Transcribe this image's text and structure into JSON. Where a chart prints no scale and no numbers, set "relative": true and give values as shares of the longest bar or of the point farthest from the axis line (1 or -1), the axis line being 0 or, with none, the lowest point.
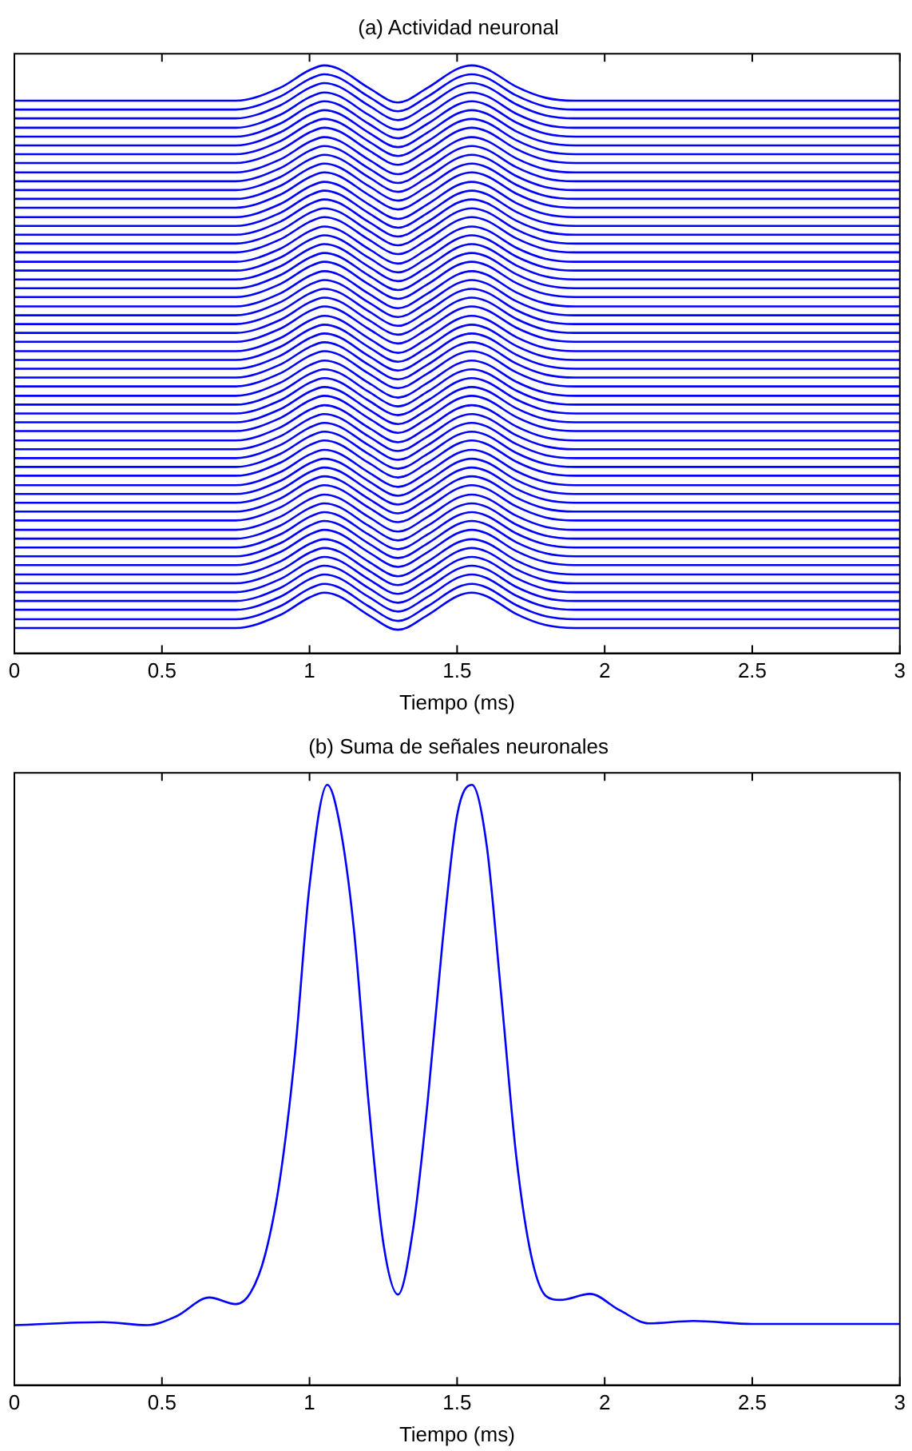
{
  "chart_data": [
    {
      "type": "line",
      "title": "(a) Actividad neuronal",
      "xlabel": "Tiempo (ms)",
      "relative": true,
      "tick_labels": "x",
      "xlim": [
        0,
        3
      ],
      "xticks": [
        0,
        0.5,
        1,
        1.5,
        2,
        2.5,
        3
      ],
      "x": [
        0,
        0.75,
        0.9,
        1.0,
        1.05,
        1.1,
        1.2,
        1.3,
        1.4,
        1.5,
        1.55,
        1.6,
        1.7,
        1.8,
        1.9,
        3
      ],
      "series": [
        {
          "color": "#0000ff",
          "values": [
            0.94,
            0.94,
            0.962,
            0.992,
            1.0,
            0.994,
            0.962,
            0.937,
            0.962,
            0.994,
            1.0,
            0.994,
            0.964,
            0.945,
            0.94,
            0.94
          ]
        },
        {
          "color": "#0000ff",
          "values": [
            0.925,
            0.925,
            0.947,
            0.977,
            0.985,
            0.979,
            0.947,
            0.922,
            0.947,
            0.979,
            0.985,
            0.979,
            0.949,
            0.93,
            0.925,
            0.925
          ]
        },
        {
          "color": "#0000ff",
          "values": [
            0.91,
            0.91,
            0.932,
            0.962,
            0.97,
            0.964,
            0.932,
            0.907,
            0.932,
            0.964,
            0.97,
            0.964,
            0.934,
            0.915,
            0.91,
            0.91
          ]
        },
        {
          "color": "#0000ff",
          "values": [
            0.894,
            0.894,
            0.916,
            0.946,
            0.954,
            0.948,
            0.916,
            0.891,
            0.916,
            0.948,
            0.954,
            0.948,
            0.918,
            0.899,
            0.894,
            0.894
          ]
        },
        {
          "color": "#0000ff",
          "values": [
            0.879,
            0.879,
            0.901,
            0.931,
            0.939,
            0.933,
            0.901,
            0.876,
            0.901,
            0.933,
            0.939,
            0.933,
            0.903,
            0.884,
            0.879,
            0.879
          ]
        },
        {
          "color": "#0000ff",
          "values": [
            0.864,
            0.864,
            0.886,
            0.916,
            0.924,
            0.918,
            0.886,
            0.861,
            0.886,
            0.918,
            0.924,
            0.918,
            0.888,
            0.869,
            0.864,
            0.864
          ]
        },
        {
          "color": "#0000ff",
          "values": [
            0.849,
            0.849,
            0.871,
            0.901,
            0.909,
            0.903,
            0.871,
            0.846,
            0.871,
            0.903,
            0.909,
            0.903,
            0.873,
            0.854,
            0.849,
            0.849
          ]
        },
        {
          "color": "#0000ff",
          "values": [
            0.834,
            0.834,
            0.856,
            0.886,
            0.894,
            0.888,
            0.856,
            0.831,
            0.856,
            0.888,
            0.894,
            0.888,
            0.858,
            0.839,
            0.834,
            0.834
          ]
        },
        {
          "color": "#0000ff",
          "values": [
            0.818,
            0.818,
            0.84,
            0.87,
            0.878,
            0.872,
            0.84,
            0.815,
            0.84,
            0.872,
            0.878,
            0.872,
            0.842,
            0.823,
            0.818,
            0.818
          ]
        },
        {
          "color": "#0000ff",
          "values": [
            0.803,
            0.803,
            0.825,
            0.855,
            0.863,
            0.857,
            0.825,
            0.8,
            0.825,
            0.857,
            0.863,
            0.857,
            0.827,
            0.808,
            0.803,
            0.803
          ]
        },
        {
          "color": "#0000ff",
          "values": [
            0.788,
            0.788,
            0.81,
            0.84,
            0.848,
            0.842,
            0.81,
            0.785,
            0.81,
            0.842,
            0.848,
            0.842,
            0.812,
            0.793,
            0.788,
            0.788
          ]
        },
        {
          "color": "#0000ff",
          "values": [
            0.773,
            0.773,
            0.795,
            0.825,
            0.833,
            0.827,
            0.795,
            0.77,
            0.795,
            0.827,
            0.833,
            0.827,
            0.797,
            0.778,
            0.773,
            0.773
          ]
        },
        {
          "color": "#0000ff",
          "values": [
            0.758,
            0.758,
            0.78,
            0.81,
            0.818,
            0.812,
            0.78,
            0.755,
            0.78,
            0.812,
            0.818,
            0.812,
            0.782,
            0.763,
            0.758,
            0.758
          ]
        },
        {
          "color": "#0000ff",
          "values": [
            0.742,
            0.742,
            0.764,
            0.794,
            0.802,
            0.796,
            0.764,
            0.739,
            0.764,
            0.796,
            0.802,
            0.796,
            0.766,
            0.747,
            0.742,
            0.742
          ]
        },
        {
          "color": "#0000ff",
          "values": [
            0.727,
            0.727,
            0.749,
            0.779,
            0.787,
            0.781,
            0.749,
            0.724,
            0.749,
            0.781,
            0.787,
            0.781,
            0.751,
            0.732,
            0.727,
            0.727
          ]
        },
        {
          "color": "#0000ff",
          "values": [
            0.712,
            0.712,
            0.734,
            0.764,
            0.772,
            0.766,
            0.734,
            0.709,
            0.734,
            0.766,
            0.772,
            0.766,
            0.736,
            0.717,
            0.712,
            0.712
          ]
        },
        {
          "color": "#0000ff",
          "values": [
            0.697,
            0.697,
            0.719,
            0.749,
            0.757,
            0.751,
            0.719,
            0.694,
            0.719,
            0.751,
            0.757,
            0.751,
            0.721,
            0.702,
            0.697,
            0.697
          ]
        },
        {
          "color": "#0000ff",
          "values": [
            0.682,
            0.682,
            0.704,
            0.734,
            0.742,
            0.736,
            0.704,
            0.679,
            0.704,
            0.736,
            0.742,
            0.736,
            0.706,
            0.687,
            0.682,
            0.682
          ]
        },
        {
          "color": "#0000ff",
          "values": [
            0.666,
            0.666,
            0.688,
            0.718,
            0.726,
            0.72,
            0.688,
            0.663,
            0.688,
            0.72,
            0.726,
            0.72,
            0.69,
            0.671,
            0.666,
            0.666
          ]
        },
        {
          "color": "#0000ff",
          "values": [
            0.651,
            0.651,
            0.673,
            0.703,
            0.711,
            0.705,
            0.673,
            0.648,
            0.673,
            0.705,
            0.711,
            0.705,
            0.675,
            0.656,
            0.651,
            0.651
          ]
        },
        {
          "color": "#0000ff",
          "values": [
            0.636,
            0.636,
            0.658,
            0.688,
            0.696,
            0.69,
            0.658,
            0.633,
            0.658,
            0.69,
            0.696,
            0.69,
            0.66,
            0.641,
            0.636,
            0.636
          ]
        },
        {
          "color": "#0000ff",
          "values": [
            0.621,
            0.621,
            0.643,
            0.673,
            0.681,
            0.675,
            0.643,
            0.618,
            0.643,
            0.675,
            0.681,
            0.675,
            0.645,
            0.626,
            0.621,
            0.621
          ]
        },
        {
          "color": "#0000ff",
          "values": [
            0.606,
            0.606,
            0.628,
            0.658,
            0.666,
            0.66,
            0.628,
            0.603,
            0.628,
            0.66,
            0.666,
            0.66,
            0.63,
            0.611,
            0.606,
            0.606
          ]
        },
        {
          "color": "#0000ff",
          "values": [
            0.59,
            0.59,
            0.612,
            0.642,
            0.65,
            0.644,
            0.612,
            0.587,
            0.612,
            0.644,
            0.65,
            0.644,
            0.614,
            0.595,
            0.59,
            0.59
          ]
        },
        {
          "color": "#0000ff",
          "values": [
            0.575,
            0.575,
            0.597,
            0.627,
            0.635,
            0.629,
            0.597,
            0.572,
            0.597,
            0.629,
            0.635,
            0.629,
            0.599,
            0.58,
            0.575,
            0.575
          ]
        },
        {
          "color": "#0000ff",
          "values": [
            0.56,
            0.56,
            0.582,
            0.612,
            0.62,
            0.614,
            0.582,
            0.557,
            0.582,
            0.614,
            0.62,
            0.614,
            0.584,
            0.565,
            0.56,
            0.56
          ]
        },
        {
          "color": "#0000ff",
          "values": [
            0.545,
            0.545,
            0.567,
            0.597,
            0.605,
            0.599,
            0.567,
            0.542,
            0.567,
            0.599,
            0.605,
            0.599,
            0.569,
            0.55,
            0.545,
            0.545
          ]
        },
        {
          "color": "#0000ff",
          "values": [
            0.53,
            0.53,
            0.552,
            0.582,
            0.59,
            0.584,
            0.552,
            0.527,
            0.552,
            0.584,
            0.59,
            0.584,
            0.554,
            0.535,
            0.53,
            0.53
          ]
        },
        {
          "color": "#0000ff",
          "values": [
            0.514,
            0.514,
            0.536,
            0.566,
            0.574,
            0.568,
            0.536,
            0.511,
            0.536,
            0.568,
            0.574,
            0.568,
            0.538,
            0.519,
            0.514,
            0.514
          ]
        },
        {
          "color": "#0000ff",
          "values": [
            0.499,
            0.499,
            0.521,
            0.551,
            0.559,
            0.553,
            0.521,
            0.496,
            0.521,
            0.553,
            0.559,
            0.553,
            0.523,
            0.504,
            0.499,
            0.499
          ]
        },
        {
          "color": "#0000ff",
          "values": [
            0.484,
            0.484,
            0.506,
            0.536,
            0.544,
            0.538,
            0.506,
            0.481,
            0.506,
            0.538,
            0.544,
            0.538,
            0.508,
            0.489,
            0.484,
            0.484
          ]
        },
        {
          "color": "#0000ff",
          "values": [
            0.469,
            0.469,
            0.491,
            0.521,
            0.529,
            0.523,
            0.491,
            0.466,
            0.491,
            0.523,
            0.529,
            0.523,
            0.493,
            0.474,
            0.469,
            0.469
          ]
        },
        {
          "color": "#0000ff",
          "values": [
            0.454,
            0.454,
            0.476,
            0.506,
            0.514,
            0.508,
            0.476,
            0.451,
            0.476,
            0.508,
            0.514,
            0.508,
            0.478,
            0.459,
            0.454,
            0.454
          ]
        },
        {
          "color": "#0000ff",
          "values": [
            0.438,
            0.438,
            0.46,
            0.49,
            0.498,
            0.492,
            0.46,
            0.435,
            0.46,
            0.492,
            0.498,
            0.492,
            0.462,
            0.443,
            0.438,
            0.438
          ]
        },
        {
          "color": "#0000ff",
          "values": [
            0.423,
            0.423,
            0.445,
            0.475,
            0.483,
            0.477,
            0.445,
            0.42,
            0.445,
            0.477,
            0.483,
            0.477,
            0.447,
            0.428,
            0.423,
            0.423
          ]
        },
        {
          "color": "#0000ff",
          "values": [
            0.408,
            0.408,
            0.43,
            0.46,
            0.468,
            0.462,
            0.43,
            0.405,
            0.43,
            0.462,
            0.468,
            0.462,
            0.432,
            0.413,
            0.408,
            0.408
          ]
        },
        {
          "color": "#0000ff",
          "values": [
            0.393,
            0.393,
            0.415,
            0.445,
            0.453,
            0.447,
            0.415,
            0.39,
            0.415,
            0.447,
            0.453,
            0.447,
            0.417,
            0.398,
            0.393,
            0.393
          ]
        },
        {
          "color": "#0000ff",
          "values": [
            0.378,
            0.378,
            0.4,
            0.43,
            0.438,
            0.432,
            0.4,
            0.375,
            0.4,
            0.432,
            0.438,
            0.432,
            0.402,
            0.383,
            0.378,
            0.378
          ]
        },
        {
          "color": "#0000ff",
          "values": [
            0.362,
            0.362,
            0.384,
            0.414,
            0.422,
            0.416,
            0.384,
            0.359,
            0.384,
            0.416,
            0.422,
            0.416,
            0.386,
            0.367,
            0.362,
            0.362
          ]
        },
        {
          "color": "#0000ff",
          "values": [
            0.347,
            0.347,
            0.369,
            0.399,
            0.407,
            0.401,
            0.369,
            0.344,
            0.369,
            0.401,
            0.407,
            0.401,
            0.371,
            0.352,
            0.347,
            0.347
          ]
        },
        {
          "color": "#0000ff",
          "values": [
            0.332,
            0.332,
            0.354,
            0.384,
            0.392,
            0.386,
            0.354,
            0.329,
            0.354,
            0.386,
            0.392,
            0.386,
            0.356,
            0.337,
            0.332,
            0.332
          ]
        },
        {
          "color": "#0000ff",
          "values": [
            0.317,
            0.317,
            0.339,
            0.369,
            0.377,
            0.371,
            0.339,
            0.314,
            0.339,
            0.371,
            0.377,
            0.371,
            0.341,
            0.322,
            0.317,
            0.317
          ]
        },
        {
          "color": "#0000ff",
          "values": [
            0.302,
            0.302,
            0.324,
            0.354,
            0.362,
            0.356,
            0.324,
            0.299,
            0.324,
            0.356,
            0.362,
            0.356,
            0.326,
            0.307,
            0.302,
            0.302
          ]
        },
        {
          "color": "#0000ff",
          "values": [
            0.286,
            0.286,
            0.308,
            0.338,
            0.346,
            0.34,
            0.308,
            0.283,
            0.308,
            0.34,
            0.346,
            0.34,
            0.31,
            0.291,
            0.286,
            0.286
          ]
        },
        {
          "color": "#0000ff",
          "values": [
            0.271,
            0.271,
            0.293,
            0.323,
            0.331,
            0.325,
            0.293,
            0.268,
            0.293,
            0.325,
            0.331,
            0.325,
            0.295,
            0.276,
            0.271,
            0.271
          ]
        },
        {
          "color": "#0000ff",
          "values": [
            0.256,
            0.256,
            0.278,
            0.308,
            0.316,
            0.31,
            0.278,
            0.253,
            0.278,
            0.31,
            0.316,
            0.31,
            0.28,
            0.261,
            0.256,
            0.256
          ]
        },
        {
          "color": "#0000ff",
          "values": [
            0.241,
            0.241,
            0.263,
            0.293,
            0.301,
            0.295,
            0.263,
            0.238,
            0.263,
            0.295,
            0.301,
            0.295,
            0.265,
            0.246,
            0.241,
            0.241
          ]
        },
        {
          "color": "#0000ff",
          "values": [
            0.226,
            0.226,
            0.248,
            0.278,
            0.286,
            0.28,
            0.248,
            0.223,
            0.248,
            0.28,
            0.286,
            0.28,
            0.25,
            0.231,
            0.226,
            0.226
          ]
        },
        {
          "color": "#0000ff",
          "values": [
            0.21,
            0.21,
            0.232,
            0.262,
            0.27,
            0.264,
            0.232,
            0.207,
            0.232,
            0.264,
            0.27,
            0.264,
            0.234,
            0.215,
            0.21,
            0.21
          ]
        },
        {
          "color": "#0000ff",
          "values": [
            0.195,
            0.195,
            0.217,
            0.247,
            0.255,
            0.249,
            0.217,
            0.192,
            0.217,
            0.249,
            0.255,
            0.249,
            0.219,
            0.2,
            0.195,
            0.195
          ]
        },
        {
          "color": "#0000ff",
          "values": [
            0.18,
            0.18,
            0.202,
            0.232,
            0.24,
            0.234,
            0.202,
            0.177,
            0.202,
            0.234,
            0.24,
            0.234,
            0.204,
            0.185,
            0.18,
            0.18
          ]
        },
        {
          "color": "#0000ff",
          "values": [
            0.165,
            0.165,
            0.187,
            0.217,
            0.225,
            0.219,
            0.187,
            0.162,
            0.187,
            0.219,
            0.225,
            0.219,
            0.189,
            0.17,
            0.165,
            0.165
          ]
        },
        {
          "color": "#0000ff",
          "values": [
            0.15,
            0.15,
            0.172,
            0.202,
            0.21,
            0.204,
            0.172,
            0.147,
            0.172,
            0.204,
            0.21,
            0.204,
            0.174,
            0.155,
            0.15,
            0.15
          ]
        },
        {
          "color": "#0000ff",
          "values": [
            0.134,
            0.134,
            0.156,
            0.186,
            0.194,
            0.188,
            0.156,
            0.131,
            0.156,
            0.188,
            0.194,
            0.188,
            0.158,
            0.139,
            0.134,
            0.134
          ]
        },
        {
          "color": "#0000ff",
          "values": [
            0.119,
            0.119,
            0.141,
            0.171,
            0.179,
            0.173,
            0.141,
            0.116,
            0.141,
            0.173,
            0.179,
            0.173,
            0.143,
            0.124,
            0.119,
            0.119
          ]
        },
        {
          "color": "#0000ff",
          "values": [
            0.104,
            0.104,
            0.126,
            0.156,
            0.164,
            0.158,
            0.126,
            0.101,
            0.126,
            0.158,
            0.164,
            0.158,
            0.128,
            0.109,
            0.104,
            0.104
          ]
        },
        {
          "color": "#0000ff",
          "values": [
            0.089,
            0.089,
            0.111,
            0.141,
            0.149,
            0.143,
            0.111,
            0.086,
            0.111,
            0.143,
            0.149,
            0.143,
            0.113,
            0.094,
            0.089,
            0.089
          ]
        },
        {
          "color": "#0000ff",
          "values": [
            0.074,
            0.074,
            0.096,
            0.126,
            0.134,
            0.128,
            0.096,
            0.071,
            0.096,
            0.128,
            0.134,
            0.128,
            0.098,
            0.079,
            0.074,
            0.074
          ]
        },
        {
          "color": "#0000ff",
          "values": [
            0.058,
            0.058,
            0.08,
            0.11,
            0.118,
            0.112,
            0.08,
            0.055,
            0.08,
            0.112,
            0.118,
            0.112,
            0.082,
            0.063,
            0.058,
            0.058
          ]
        },
        {
          "color": "#0000ff",
          "values": [
            0.043,
            0.043,
            0.065,
            0.095,
            0.103,
            0.097,
            0.065,
            0.04,
            0.065,
            0.097,
            0.103,
            0.097,
            0.067,
            0.048,
            0.043,
            0.043
          ]
        }
      ]
    },
    {
      "type": "line",
      "title": "(b) Suma de señales neuronales",
      "xlabel": "Tiempo (ms)",
      "relative": true,
      "tick_labels": "x",
      "xlim": [
        0,
        3
      ],
      "xticks": [
        0,
        0.5,
        1,
        1.5,
        2,
        2.5,
        3
      ],
      "x": [
        0,
        0.3,
        0.45,
        0.55,
        0.66,
        0.75,
        0.8,
        0.85,
        0.9,
        0.95,
        1.0,
        1.06,
        1.1,
        1.15,
        1.2,
        1.25,
        1.3,
        1.35,
        1.4,
        1.45,
        1.5,
        1.55,
        1.6,
        1.65,
        1.7,
        1.75,
        1.8,
        1.85,
        1.95,
        2.05,
        2.15,
        2.3,
        2.5,
        3.0
      ],
      "series": [
        {
          "color": "#0000ff",
          "values": [
            0.1,
            0.105,
            0.1,
            0.115,
            0.146,
            0.135,
            0.154,
            0.218,
            0.344,
            0.549,
            0.832,
            1.0,
            0.94,
            0.761,
            0.471,
            0.237,
            0.151,
            0.257,
            0.471,
            0.735,
            0.949,
            1.0,
            0.9,
            0.647,
            0.383,
            0.218,
            0.149,
            0.142,
            0.152,
            0.125,
            0.103,
            0.107,
            0.102,
            0.102
          ]
        }
      ]
    }
  ]
}
